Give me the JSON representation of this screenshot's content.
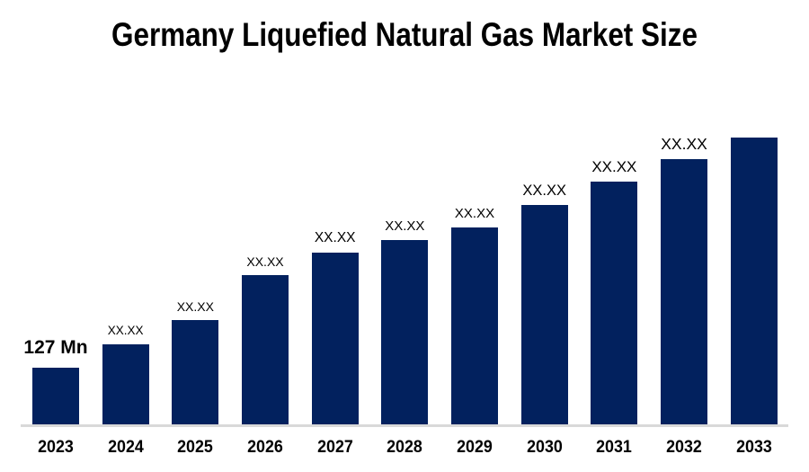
{
  "title": "Germany Liquefied Natural Gas Market Size",
  "chart_data": {
    "type": "bar",
    "title": "Germany Liquefied Natural Gas Market Size",
    "categories": [
      "2023",
      "2024",
      "2025",
      "2026",
      "2027",
      "2028",
      "2029",
      "2030",
      "2031",
      "2032",
      "2033"
    ],
    "values_estimated_mn": [
      127,
      180,
      233,
      334,
      386,
      413,
      441,
      491,
      545,
      594,
      644
    ],
    "bar_labels": [
      "127 Mn",
      "XX.XX",
      "XX.XX",
      "XX.XX",
      "XX.XX",
      "XX.XX",
      "XX.XX",
      "XX.XX",
      "XX.XX",
      "XX.XX",
      ""
    ],
    "unit": "Mn",
    "only_labeled_value": "127 Mn",
    "bar_color": "#02215E",
    "axis_line_color": "#D9D9D9",
    "text_color": "#000000",
    "background_color": "#FFFFFF",
    "xlabel": "",
    "ylabel": "",
    "ylim": [
      0,
      650
    ],
    "grid": false,
    "legend": false
  }
}
